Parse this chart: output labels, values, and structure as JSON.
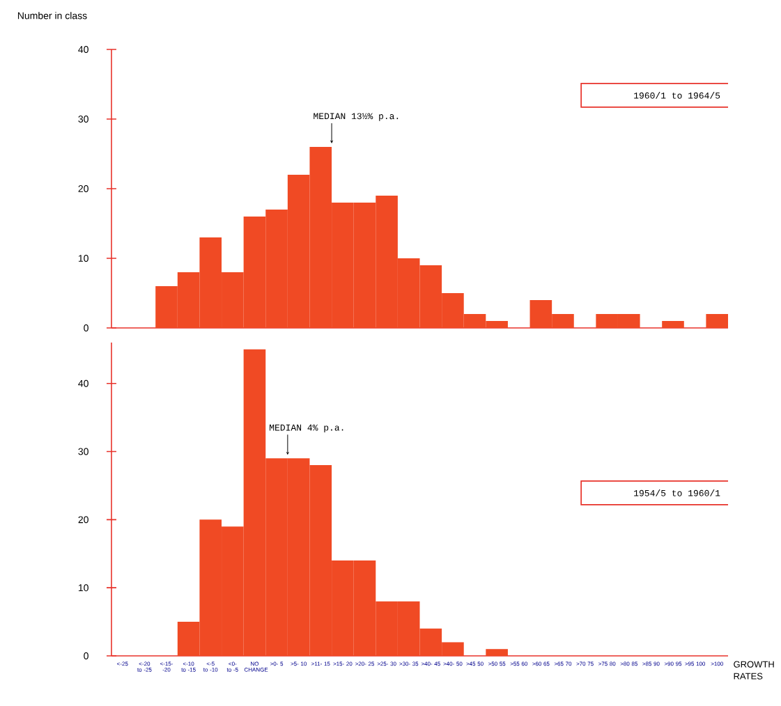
{
  "chart_data": [
    {
      "type": "bar",
      "ylabel": "Number in class",
      "categories": [
        "<-25",
        "<-20 to -25",
        "<-15- -20",
        "<-10 to -15",
        "<-5 to -10",
        "<0- to -5",
        "NO CHANGE",
        ">0- 5",
        ">5- 10",
        ">11- 15",
        ">15- 20",
        ">20- 25",
        ">25- 30",
        ">30- 35",
        ">40- 45",
        ">40- 50",
        ">45 50",
        ">50 55",
        ">55 60",
        ">60 65",
        ">65 70",
        ">70 75",
        ">75 80",
        ">80 85",
        ">85 90",
        ">90 95",
        ">95 100",
        ">100"
      ],
      "values": [
        0,
        0,
        6,
        8,
        13,
        8,
        16,
        17,
        22,
        26,
        18,
        18,
        19,
        10,
        9,
        5,
        2,
        1,
        0,
        4,
        2,
        0,
        2,
        2,
        0,
        1,
        0,
        2
      ],
      "color": "#f04a24",
      "ylim": [
        0,
        40
      ],
      "yticks": [
        0,
        10,
        20,
        30,
        40
      ],
      "tick_labels": "y",
      "annotations": [
        "1960/1 to 1964/5",
        {
          "text": "MEDIAN 13½% p.a.",
          "x": ">11- 15",
          "y": 26
        }
      ]
    },
    {
      "type": "bar",
      "xlabel": "GROWTH RATES",
      "categories": [
        "<-25",
        "<-20 to -25",
        "<-15- -20",
        "<-10 to -15",
        "<-5 to -10",
        "<0- to -5",
        "NO CHANGE",
        ">0- 5",
        ">5- 10",
        ">11- 15",
        ">15- 20",
        ">20- 25",
        ">25- 30",
        ">30- 35",
        ">40- 45",
        ">40- 50",
        ">45 50",
        ">50 55",
        ">55 60",
        ">60 65",
        ">65 70",
        ">70 75",
        ">75 80",
        ">80 85",
        ">85 90",
        ">90 95",
        ">95 100",
        ">100"
      ],
      "values": [
        0,
        0,
        0,
        5,
        20,
        19,
        45,
        29,
        29,
        28,
        14,
        14,
        8,
        8,
        4,
        2,
        0,
        1,
        0,
        0,
        0,
        0,
        0,
        0,
        0,
        0,
        0,
        0
      ],
      "color": "#f04a24",
      "ylim": [
        0,
        46
      ],
      "yticks": [
        0,
        10,
        20,
        30,
        40
      ],
      "annotations": [
        "1954/5 to 1960/1",
        {
          "text": "MEDIAN 4% p.a.",
          "x": ">0- 5",
          "y": 29
        }
      ]
    }
  ]
}
